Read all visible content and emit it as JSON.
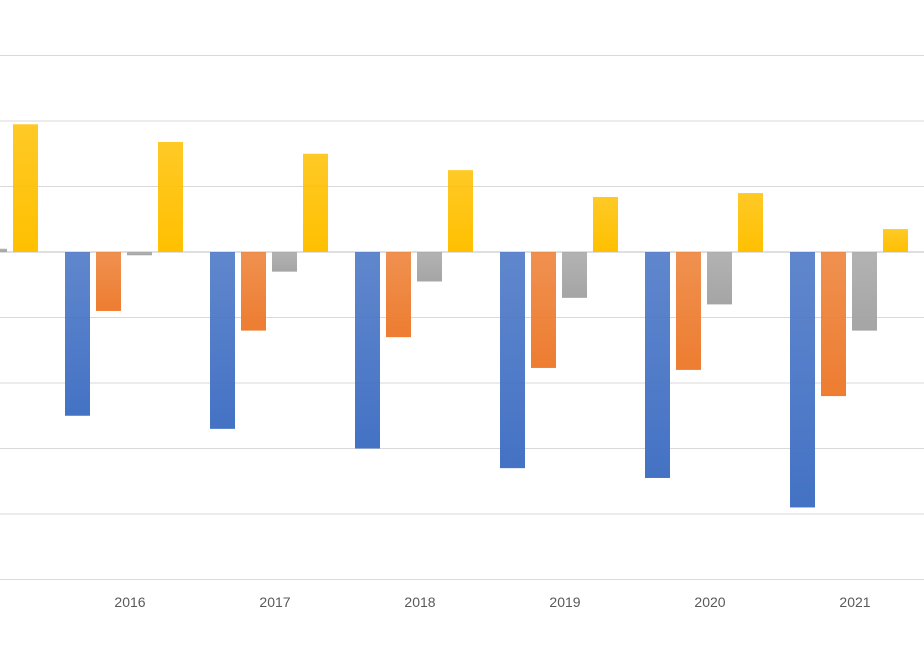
{
  "chart_data": {
    "type": "bar",
    "categories": [
      "",
      "2016",
      "2017",
      "2018",
      "2019",
      "2020",
      "2021"
    ],
    "series": [
      {
        "color": "#4472C4",
        "values": [
          null,
          -2.5,
          -2.7,
          -3.0,
          -3.3,
          -3.45,
          -3.9
        ]
      },
      {
        "color": "#ED7D31",
        "values": [
          null,
          -0.9,
          -1.2,
          -1.3,
          -1.77,
          -1.8,
          -2.2
        ]
      },
      {
        "color": "#A5A5A5",
        "values": [
          0.05,
          -0.05,
          -0.3,
          -0.45,
          -0.7,
          -0.8,
          -1.2
        ]
      },
      {
        "color": "#FFC000",
        "values": [
          1.95,
          1.68,
          1.5,
          1.25,
          0.84,
          0.9,
          0.35
        ]
      }
    ],
    "ylim": [
      -5,
      3.8
    ],
    "grid": true,
    "legend": "none"
  }
}
